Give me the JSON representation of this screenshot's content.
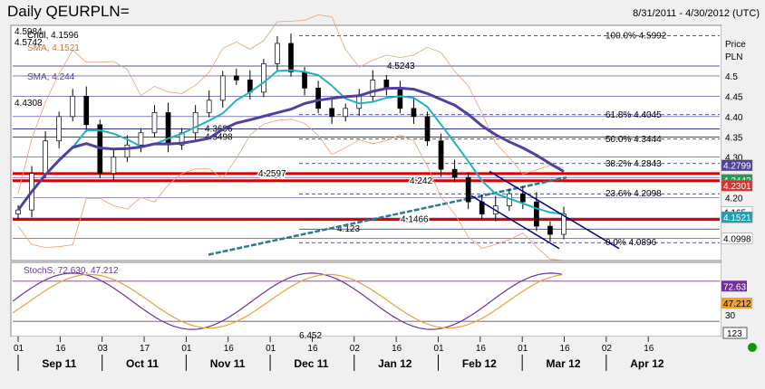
{
  "header": {
    "title": "Daily QEURPLN=",
    "date_range": "8/31/2011 - 4/30/2012 (UTC)"
  },
  "colors": {
    "price_bars": "#000000",
    "sma_short": "#20b2c0",
    "sma_long": "#5040a0",
    "bollinger": "#e8a070",
    "support_resistance": "#dd0000",
    "channel": "#000080",
    "trendline": "#2a7a90",
    "stoch_k": "#7030a0",
    "stoch_d": "#f0a030",
    "indicator_dot": "#00a000"
  },
  "chart_data": [
    {
      "type": "candlestick",
      "title": "Daily QEURPLN=",
      "ylabel": "Price PLN",
      "ylim": [
        4.05,
        4.62
      ],
      "y_ticks": [
        4.1,
        4.15,
        4.2,
        4.25,
        4.3,
        4.35,
        4.4,
        4.45,
        4.5
      ],
      "x_tick_days": [
        "01",
        "16",
        "03",
        "17",
        "01",
        "16",
        "01",
        "16",
        "02",
        "16",
        "01",
        "16",
        "01",
        "16",
        "02",
        "16"
      ],
      "x_months": [
        "Sep 11",
        "Oct 11",
        "Nov 11",
        "Dec 11",
        "Jan 12",
        "Feb 12",
        "Mar 12",
        "Apr 12"
      ],
      "series_close": [
        4.17,
        4.26,
        4.34,
        4.4,
        4.45,
        4.38,
        4.26,
        4.3,
        4.33,
        4.36,
        4.41,
        4.33,
        4.36,
        4.41,
        4.44,
        4.5,
        4.49,
        4.46,
        4.53,
        4.58,
        4.51,
        4.47,
        4.42,
        4.4,
        4.42,
        4.45,
        4.49,
        4.47,
        4.42,
        4.4,
        4.34,
        4.27,
        4.25,
        4.19,
        4.16,
        4.18,
        4.21,
        4.19,
        4.13,
        4.11,
        4.16
      ],
      "legend": [
        {
          "label": "Cndl, 4.1596",
          "value": 4.1596
        },
        {
          "label": "SMA, 4.1521",
          "value": 4.1521
        },
        {
          "label": "SMA, 4.244",
          "value": 4.244
        }
      ],
      "left_labels": [
        "4.5984",
        "4.5742",
        "4.4308"
      ],
      "horizontal_levels": [
        {
          "label": "4.2597",
          "value": 4.2597
        },
        {
          "label": "4.242",
          "value": 4.242
        },
        {
          "label": "4.1466",
          "value": 4.1466
        },
        {
          "label": "4.123",
          "value": 4.123
        },
        {
          "label": "4.5243",
          "value": 4.5243
        },
        {
          "label": "4.3498",
          "value": 4.3498
        },
        {
          "label": "4.3696",
          "value": 4.3696
        }
      ],
      "fibonacci": [
        {
          "label": "100.0% 4.5992",
          "value": 4.5992
        },
        {
          "label": "61.8% 4.4045",
          "value": 4.4045
        },
        {
          "label": "50.0% 4.3444",
          "value": 4.3444
        },
        {
          "label": "38.2% 4.2843",
          "value": 4.2843
        },
        {
          "label": "23.6% 4.2098",
          "value": 4.2098
        },
        {
          "label": "0.0% 4.0896",
          "value": 4.0896
        }
      ],
      "price_axis_badges": [
        {
          "label": "4.2799",
          "value": 4.2799
        },
        {
          "label": "4.2442",
          "value": 4.2442
        },
        {
          "label": "4.2301",
          "value": 4.2301
        },
        {
          "label": "4.165",
          "value": 4.165
        },
        {
          "label": "4.1521",
          "value": 4.1521
        },
        {
          "label": "4.0998",
          "value": 4.0998
        }
      ]
    },
    {
      "type": "line",
      "title": "StochS, 72.630, 47.212",
      "series": [
        {
          "name": "StochS %K",
          "last": 72.63
        },
        {
          "name": "StochS %D",
          "last": 47.212
        }
      ],
      "levels": [
        80,
        20
      ],
      "y_ticks": [
        30
      ],
      "annotation": "6.452",
      "badges": [
        "72.63",
        "47.212",
        "123"
      ]
    }
  ]
}
